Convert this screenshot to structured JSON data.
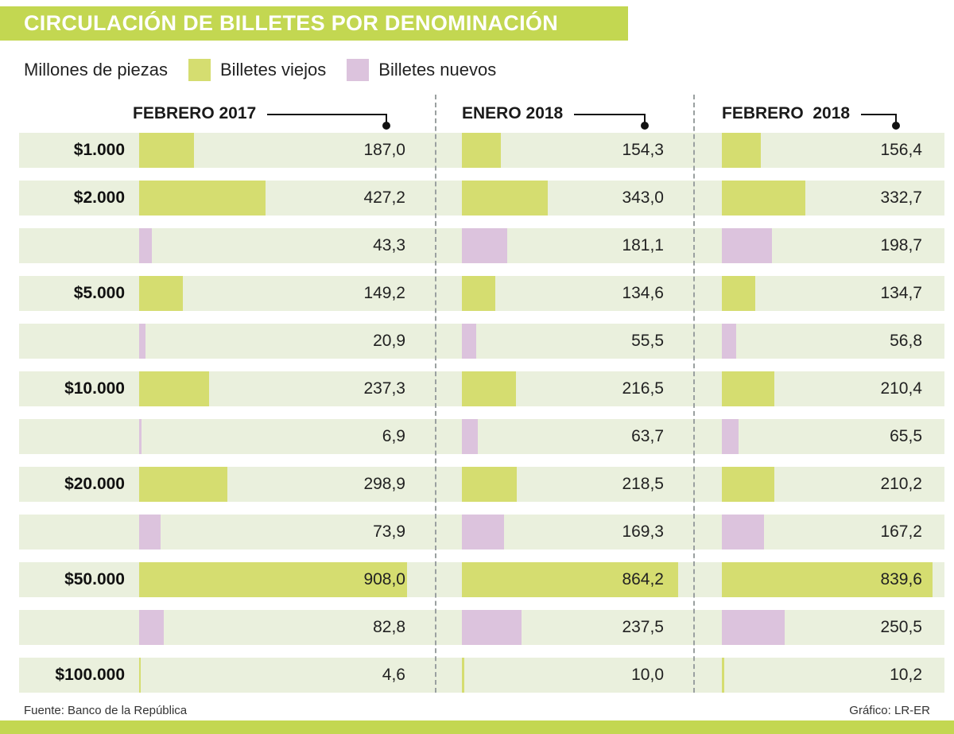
{
  "title": "CIRCULACIÓN DE BILLETES POR DENOMINACIÓN",
  "legend": {
    "unit_label": "Millones de piezas",
    "old_label": "Billetes viejos",
    "new_label": "Billetes nuevos"
  },
  "footer": {
    "source": "Fuente: Banco de la República",
    "credit": "Gráfico: LR-ER"
  },
  "colors": {
    "accent_green": "#c3d751",
    "old_bills": "#d5dd70",
    "new_bills": "#dcc3dd",
    "band_bg": "#eaf0dd"
  },
  "chart_data": {
    "type": "bar",
    "orientation": "horizontal",
    "title": "CIRCULACIÓN DE BILLETES POR DENOMINACIÓN",
    "unit": "Millones de piezas",
    "legend": [
      "Billetes viejos",
      "Billetes nuevos"
    ],
    "legend_position": "top",
    "columns": [
      "FEBRERO 2017",
      "ENERO 2018",
      "FEBRERO  2018"
    ],
    "xmax": 908.0,
    "rows": [
      {
        "denomination": "$1.000",
        "series": "viejos",
        "values": [
          187.0,
          154.3,
          156.4
        ],
        "labels": [
          "187,0",
          "154,3",
          "156,4"
        ]
      },
      {
        "denomination": "$2.000",
        "series": "viejos",
        "values": [
          427.2,
          343.0,
          332.7
        ],
        "labels": [
          "427,2",
          "343,0",
          "332,7"
        ]
      },
      {
        "denomination": "",
        "series": "nuevos",
        "values": [
          43.3,
          181.1,
          198.7
        ],
        "labels": [
          "43,3",
          "181,1",
          "198,7"
        ]
      },
      {
        "denomination": "$5.000",
        "series": "viejos",
        "values": [
          149.2,
          134.6,
          134.7
        ],
        "labels": [
          "149,2",
          "134,6",
          "134,7"
        ]
      },
      {
        "denomination": "",
        "series": "nuevos",
        "values": [
          20.9,
          55.5,
          56.8
        ],
        "labels": [
          "20,9",
          "55,5",
          "56,8"
        ]
      },
      {
        "denomination": "$10.000",
        "series": "viejos",
        "values": [
          237.3,
          216.5,
          210.4
        ],
        "labels": [
          "237,3",
          "216,5",
          "210,4"
        ]
      },
      {
        "denomination": "",
        "series": "nuevos",
        "values": [
          6.9,
          63.7,
          65.5
        ],
        "labels": [
          "6,9",
          "63,7",
          "65,5"
        ]
      },
      {
        "denomination": "$20.000",
        "series": "viejos",
        "values": [
          298.9,
          218.5,
          210.2
        ],
        "labels": [
          "298,9",
          "218,5",
          "210,2"
        ]
      },
      {
        "denomination": "",
        "series": "nuevos",
        "values": [
          73.9,
          169.3,
          167.2
        ],
        "labels": [
          "73,9",
          "169,3",
          "167,2"
        ]
      },
      {
        "denomination": "$50.000",
        "series": "viejos",
        "values": [
          908.0,
          864.2,
          839.6
        ],
        "labels": [
          "908,0",
          "864,2",
          "839,6"
        ]
      },
      {
        "denomination": "",
        "series": "nuevos",
        "values": [
          82.8,
          237.5,
          250.5
        ],
        "labels": [
          "82,8",
          "237,5",
          "250,5"
        ]
      },
      {
        "denomination": "$100.000",
        "series": "viejos",
        "values": [
          4.6,
          10.0,
          10.2
        ],
        "labels": [
          "4,6",
          "10,0",
          "10,2"
        ]
      }
    ]
  }
}
